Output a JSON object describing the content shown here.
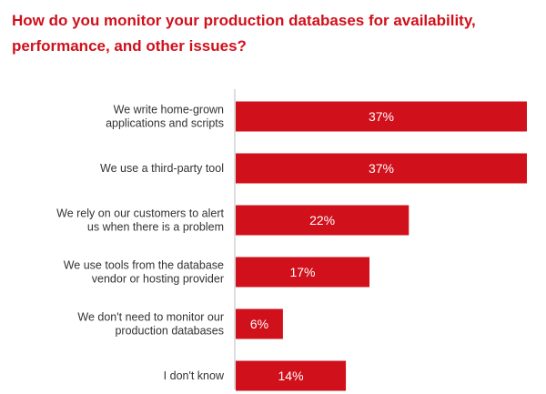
{
  "chart_data": {
    "type": "bar",
    "orientation": "horizontal",
    "title": "How do you monitor your production databases for availability, performance, and other issues?",
    "categories": [
      [
        "We write home-grown",
        "applications and scripts"
      ],
      [
        "We use a third-party tool"
      ],
      [
        "We rely on our customers to alert",
        "us when there is a problem"
      ],
      [
        "We use tools from the database",
        "vendor or hosting provider"
      ],
      [
        "We don't need to monitor our",
        "production databases"
      ],
      [
        "I don't know"
      ]
    ],
    "values": [
      37,
      37,
      22,
      17,
      6,
      14
    ],
    "value_labels": [
      "37%",
      "37%",
      "22%",
      "17%",
      "6%",
      "14%"
    ],
    "xlim": [
      0,
      37
    ],
    "bar_color": "#d0101b",
    "axis_color": "#bbbbbb",
    "grid": false,
    "legend": "none"
  }
}
